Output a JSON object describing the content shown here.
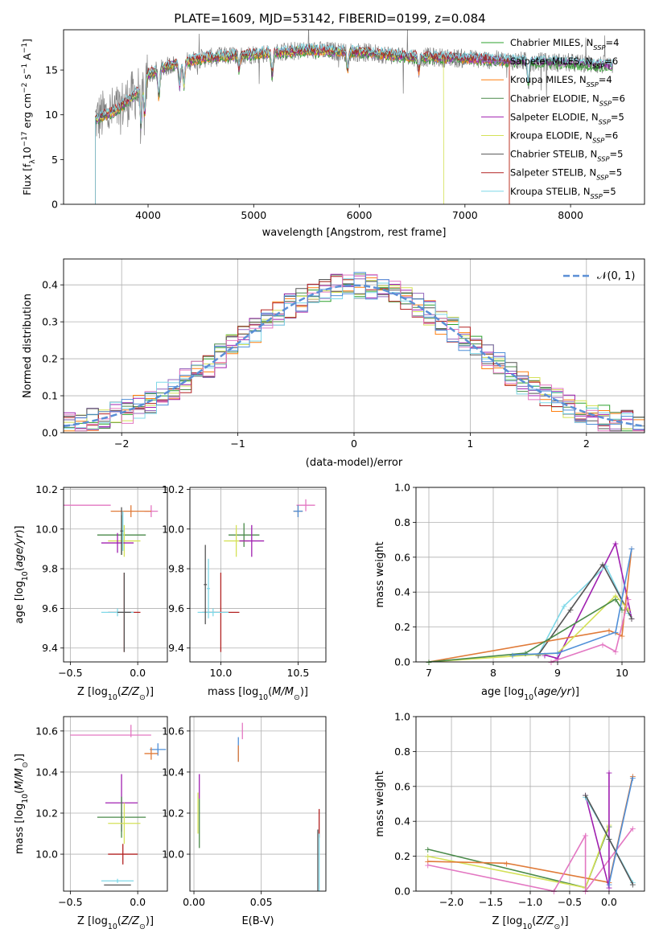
{
  "figure_title": "PLATE=1609, MJD=53142, FIBERID=0199, z=0.084",
  "colors": {
    "Chabrier MILES": "#2ca02c",
    "Salpeter MILES": "#9467bd",
    "Kroupa MILES": "#ff7f0e",
    "Chabrier ELODIE": "#4a8a4a",
    "Salpeter ELODIE": "#a020b0",
    "Kroupa ELODIE": "#d4e157",
    "Chabrier STELIB": "#555555",
    "Salpeter STELIB": "#b22222",
    "Kroupa STELIB": "#7fd8e8",
    "MILES overlay grey": "#888888",
    "gaussian": "#5b8fd6",
    "pink": "#e377c2",
    "blue": "#4f8fd8",
    "orange": "#e07b39"
  },
  "chart_data": [
    {
      "id": "spectrum",
      "type": "line",
      "title": "PLATE=1609, MJD=53142, FIBERID=0199, z=0.084",
      "xlabel": "wavelength [Angstrom, rest frame]",
      "ylabel": "Flux [fλ10⁻¹⁷ erg cm⁻² s⁻¹ A⁻¹]",
      "xlim": [
        3200,
        8700
      ],
      "ylim": [
        0,
        19.5
      ],
      "xticks": [
        4000,
        5000,
        6000,
        7000,
        8000
      ],
      "yticks": [
        0,
        5,
        10,
        15
      ],
      "legend_position": "right",
      "legend": [
        "Chabrier MILES, N_SSP=4",
        "Salpeter MILES, N_SSP=6",
        "Kroupa MILES, N_SSP=4",
        "Chabrier ELODIE, N_SSP=6",
        "Salpeter ELODIE, N_SSP=5",
        "Kroupa ELODIE, N_SSP=6",
        "Chabrier STELIB, N_SSP=5",
        "Salpeter STELIB, N_SSP=5",
        "Kroupa STELIB, N_SSP=5"
      ],
      "continuum_x": [
        3500,
        3700,
        3900,
        4000,
        4200,
        4500,
        5000,
        5500,
        6000,
        6500,
        7000,
        7500,
        8000,
        8400
      ],
      "continuum_y": [
        9.5,
        10.5,
        12.5,
        14.5,
        15.5,
        16.3,
        16.8,
        17.2,
        17.0,
        16.5,
        16.3,
        16.0,
        15.8,
        15.5
      ]
    },
    {
      "id": "residuals",
      "type": "line",
      "xlabel": "(data-model)/error",
      "ylabel": "Normed distribution",
      "xlim": [
        -2.5,
        2.5
      ],
      "ylim": [
        0,
        0.47
      ],
      "xticks": [
        -2,
        -1,
        0,
        1,
        2
      ],
      "yticks": [
        0.0,
        0.1,
        0.2,
        0.3,
        0.4
      ],
      "grid": true,
      "legend": [
        "𝒩(0, 1)"
      ],
      "legend_position": "top-right"
    },
    {
      "id": "age_vs_Z",
      "type": "scatter",
      "xlabel": "Z [log₁₀(Z/Z⊙)]",
      "ylabel": "age  [log₁₀(age/yr)]",
      "xlim": [
        -0.55,
        0.22
      ],
      "ylim": [
        9.33,
        10.21
      ],
      "xticks": [
        -0.5,
        0.0
      ],
      "yticks": [
        9.4,
        9.6,
        9.8,
        10.0,
        10.2
      ],
      "grid": true,
      "points": [
        {
          "x": 0.1,
          "y": 10.09,
          "xerr": 0.05,
          "yerr": 0.03,
          "c": "pink"
        },
        {
          "x": -0.05,
          "y": 10.09,
          "xerr": 0.15,
          "yerr": 0.03,
          "c": "orange"
        },
        {
          "x": -0.12,
          "y": 9.97,
          "xerr": 0.18,
          "yerr": 0.1,
          "c": "Chabrier ELODIE"
        },
        {
          "x": -0.1,
          "y": 9.94,
          "xerr": 0.12,
          "yerr": 0.08,
          "c": "Kroupa ELODIE"
        },
        {
          "x": -0.15,
          "y": 9.93,
          "xerr": 0.12,
          "yerr": 0.05,
          "c": "Salpeter ELODIE"
        },
        {
          "x": -0.1,
          "y": 9.58,
          "xerr": 0.12,
          "yerr": 0.2,
          "c": "Salpeter STELIB"
        },
        {
          "x": -0.15,
          "y": 9.58,
          "xerr": 0.12,
          "yerr": 0.02,
          "c": "Kroupa STELIB"
        },
        {
          "x": -0.5,
          "y": 10.12,
          "xerr": 0.3,
          "yerr": 0.0,
          "c": "pink"
        }
      ]
    },
    {
      "id": "age_vs_mass",
      "type": "scatter",
      "xlabel": "mass [log₁₀(M/M⊙)]",
      "xlim": [
        9.8,
        10.68
      ],
      "ylim": [
        9.33,
        10.21
      ],
      "xticks": [
        10.0,
        10.5
      ],
      "yticks": [
        9.4,
        9.6,
        9.8,
        10.0,
        10.2
      ],
      "grid": true
    },
    {
      "id": "weight_vs_age",
      "type": "line",
      "xlabel": "age  [log₁₀(age/yr)]",
      "ylabel": "mass weight",
      "xlim": [
        6.8,
        10.35
      ],
      "ylim": [
        0,
        1.0
      ],
      "xticks": [
        7,
        8,
        9,
        10
      ],
      "yticks": [
        0.0,
        0.2,
        0.4,
        0.6,
        0.8,
        1.0
      ],
      "grid": true
    },
    {
      "id": "mass_vs_Z",
      "type": "scatter",
      "xlabel": "Z [log₁₀(Z/Z⊙)]",
      "ylabel": "mass [log₁₀(M/M⊙)]",
      "xlim": [
        -0.55,
        0.22
      ],
      "ylim": [
        9.82,
        10.67
      ],
      "xticks": [
        -0.5,
        0.0
      ],
      "yticks": [
        10.0,
        10.2,
        10.4,
        10.6
      ],
      "grid": true
    },
    {
      "id": "mass_vs_ebv",
      "type": "scatter",
      "xlabel": "E(B-V)",
      "xlim": [
        -0.003,
        0.098
      ],
      "ylim": [
        9.82,
        10.67
      ],
      "xticks": [
        0.0,
        0.05
      ],
      "yticks": [
        10.0,
        10.2,
        10.4,
        10.6
      ],
      "grid": true
    },
    {
      "id": "weight_vs_Z",
      "type": "line",
      "xlabel": "Z [log₁₀(Z/Z⊙)]",
      "ylabel": "mass weight",
      "xlim": [
        -2.45,
        0.45
      ],
      "ylim": [
        0,
        1.0
      ],
      "xticks": [
        -2.0,
        -1.5,
        -1.0,
        -0.5,
        0.0
      ],
      "yticks": [
        0.0,
        0.2,
        0.4,
        0.6,
        0.8,
        1.0
      ],
      "grid": true
    }
  ]
}
